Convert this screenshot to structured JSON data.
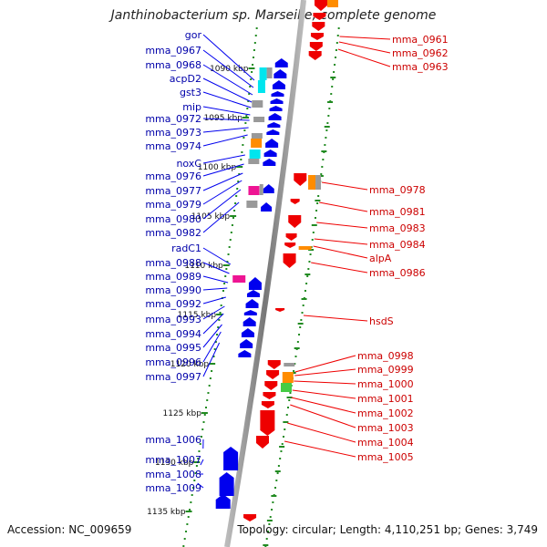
{
  "title": "Janthinobacterium sp. Marseille, complete genome",
  "footer": {
    "accession": "Accession: NC_009659",
    "summary": "Topology: circular; Length: 4,110,251 bp; Genes: 3,749"
  },
  "colors": {
    "forward": "#0000ee",
    "reverse": "#ee0000",
    "backbone": "#888888",
    "tick": "#228b22",
    "cog_cyan": "#00e5ee",
    "cog_magenta": "#ee1493",
    "cog_orange": "#ff8c00",
    "cog_gray": "#999999"
  },
  "kbp_labels": [
    "1090 kbp",
    "1095 kbp",
    "1100 kbp",
    "1105 kbp",
    "1110 kbp",
    "1115 kbp",
    "1120 kbp",
    "1125 kbp",
    "1130 kbp",
    "1135 kbp"
  ],
  "left_genes": [
    "gor",
    "mma_0967",
    "mma_0968",
    "acpD2",
    "gst3",
    "mip",
    "mma_0972",
    "mma_0973",
    "mma_0974",
    "noxC",
    "mma_0976",
    "mma_0977",
    "mma_0979",
    "mma_0980",
    "mma_0982",
    "radC1",
    "mma_0988",
    "mma_0989",
    "mma_0990",
    "mma_0992",
    "mma_0993",
    "mma_0994",
    "mma_0995",
    "mma_0996",
    "mma_0997",
    "mma_1006",
    "mma_1007",
    "mma_1008",
    "mma_1009"
  ],
  "right_genes": [
    "mma_0961",
    "mma_0962",
    "mma_0963",
    "mma_0978",
    "mma_0981",
    "mma_0983",
    "mma_0984",
    "alpA",
    "mma_0986",
    "hsdS",
    "mma_0998",
    "mma_0999",
    "mma_1000",
    "mma_1001",
    "mma_1002",
    "mma_1003",
    "mma_1004",
    "mma_1005"
  ]
}
